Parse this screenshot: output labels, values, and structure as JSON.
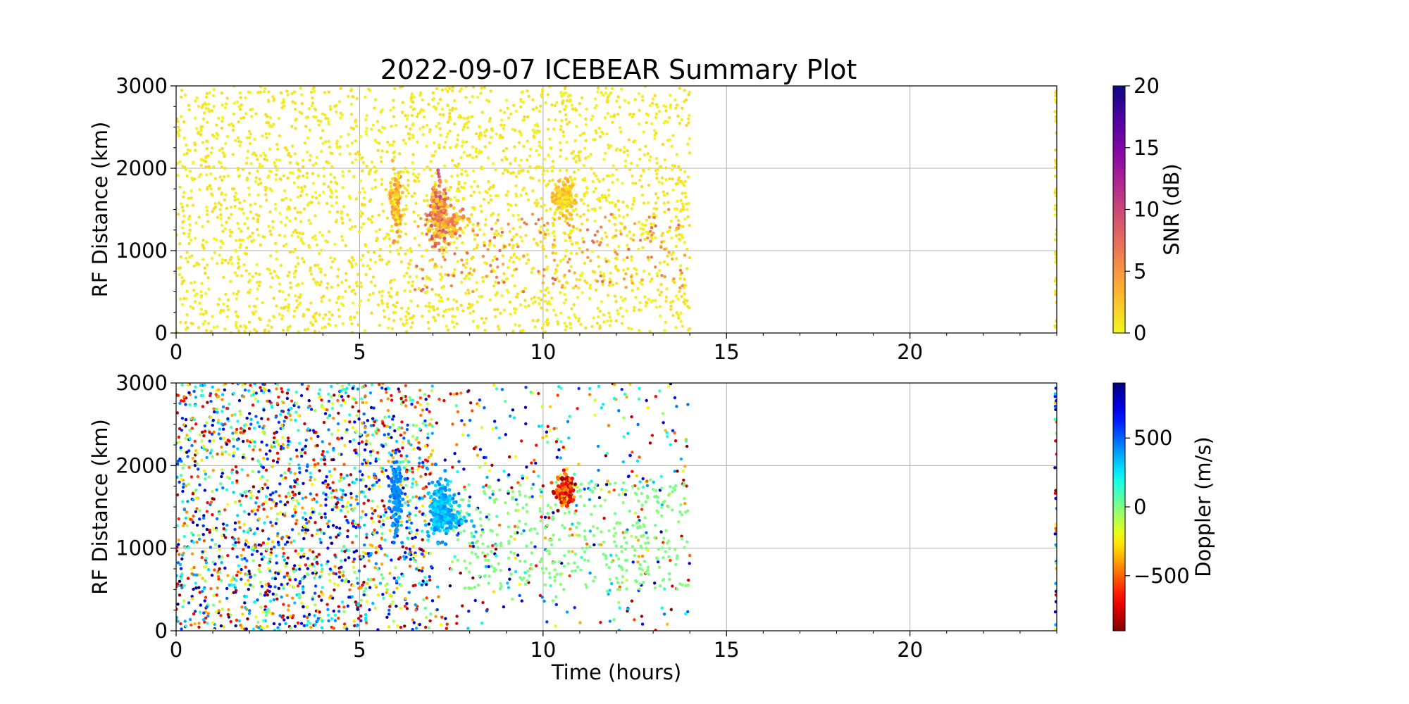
{
  "title": "2022-09-07 ICEBEAR Summary Plot",
  "chart_data": [
    {
      "type": "scatter",
      "panel": "top",
      "title": "2022-09-07 ICEBEAR Summary Plot",
      "xlabel": "",
      "ylabel": "RF Distance (km)",
      "xlim": [
        0,
        24
      ],
      "ylim": [
        0,
        3000
      ],
      "xticks": [
        0,
        5,
        10,
        15,
        20
      ],
      "xtick_labels": [
        "0",
        "5",
        "10",
        "15",
        "20"
      ],
      "yticks": [
        0,
        1000,
        2000,
        3000
      ],
      "ytick_labels": [
        "0",
        "1000",
        "2000",
        "3000"
      ],
      "grid": true,
      "color_variable": "snr",
      "colorbar": {
        "label": "SNR (dB)",
        "colormap": "plasma_r",
        "range": [
          0,
          20
        ],
        "ticks": [
          0,
          5,
          10,
          15,
          20
        ],
        "tick_labels": [
          "0",
          "5",
          "10",
          "15",
          "20"
        ]
      },
      "scatter_regions": [
        {
          "x_range": [
            0,
            14
          ],
          "y_range": [
            0,
            3000
          ],
          "count": 2600,
          "value_range": [
            0,
            1.5
          ]
        },
        {
          "x_range": [
            6.5,
            14
          ],
          "y_range": [
            500,
            1500
          ],
          "count": 180,
          "value_range": [
            3,
            8
          ]
        },
        {
          "x_range": [
            23.95,
            24
          ],
          "y_range": [
            0,
            3000
          ],
          "count": 50,
          "value_range": [
            0,
            2
          ]
        }
      ],
      "clusters": [
        {
          "x_center": 6.0,
          "y_center": 1600,
          "x_spread": 0.08,
          "y_spread": 200,
          "count": 120,
          "value_range": [
            0,
            6
          ]
        },
        {
          "x_center": 7.15,
          "y_center": 1450,
          "x_spread": 0.12,
          "y_spread": 180,
          "count": 200,
          "value_range": [
            1,
            10
          ]
        },
        {
          "x_center": 7.5,
          "y_center": 1350,
          "x_spread": 0.2,
          "y_spread": 80,
          "count": 60,
          "value_range": [
            1,
            8
          ]
        },
        {
          "x_center": 10.6,
          "y_center": 1650,
          "x_spread": 0.15,
          "y_spread": 100,
          "count": 150,
          "value_range": [
            0,
            4
          ]
        }
      ]
    },
    {
      "type": "scatter",
      "panel": "bottom",
      "title": "",
      "xlabel": "Time (hours)",
      "ylabel": "RF Distance (km)",
      "xlim": [
        0,
        24
      ],
      "ylim": [
        0,
        3000
      ],
      "xticks": [
        0,
        5,
        10,
        15,
        20
      ],
      "xtick_labels": [
        "0",
        "5",
        "10",
        "15",
        "20"
      ],
      "yticks": [
        0,
        1000,
        2000,
        3000
      ],
      "ytick_labels": [
        "0",
        "1000",
        "2000",
        "3000"
      ],
      "grid": true,
      "color_variable": "doppler",
      "colorbar": {
        "label": "Doppler (m/s)",
        "colormap": "jet_r",
        "range": [
          -900,
          900
        ],
        "ticks": [
          -500,
          0,
          500
        ],
        "tick_labels": [
          "−500",
          "0",
          "500"
        ]
      },
      "scatter_regions": [
        {
          "x_range": [
            0,
            7
          ],
          "y_range": [
            0,
            3000
          ],
          "count": 1900,
          "value_range": [
            -900,
            900
          ]
        },
        {
          "x_range": [
            7,
            14
          ],
          "y_range": [
            0,
            3000
          ],
          "count": 420,
          "value_range": [
            -900,
            900
          ]
        },
        {
          "x_range": [
            7.5,
            14
          ],
          "y_range": [
            500,
            1800
          ],
          "count": 380,
          "value_range": [
            -30,
            30
          ]
        },
        {
          "x_range": [
            23.95,
            24
          ],
          "y_range": [
            0,
            3000
          ],
          "count": 40,
          "value_range": [
            -900,
            900
          ]
        }
      ],
      "clusters": [
        {
          "x_center": 6.0,
          "y_center": 1600,
          "x_spread": 0.08,
          "y_spread": 220,
          "count": 120,
          "value_range": [
            350,
            500
          ]
        },
        {
          "x_center": 7.2,
          "y_center": 1450,
          "x_spread": 0.15,
          "y_spread": 180,
          "count": 200,
          "value_range": [
            250,
            450
          ]
        },
        {
          "x_center": 7.6,
          "y_center": 1350,
          "x_spread": 0.2,
          "y_spread": 60,
          "count": 60,
          "value_range": [
            250,
            450
          ]
        },
        {
          "x_center": 10.6,
          "y_center": 1700,
          "x_spread": 0.12,
          "y_spread": 100,
          "count": 150,
          "value_range": [
            -900,
            -250
          ]
        }
      ]
    }
  ]
}
